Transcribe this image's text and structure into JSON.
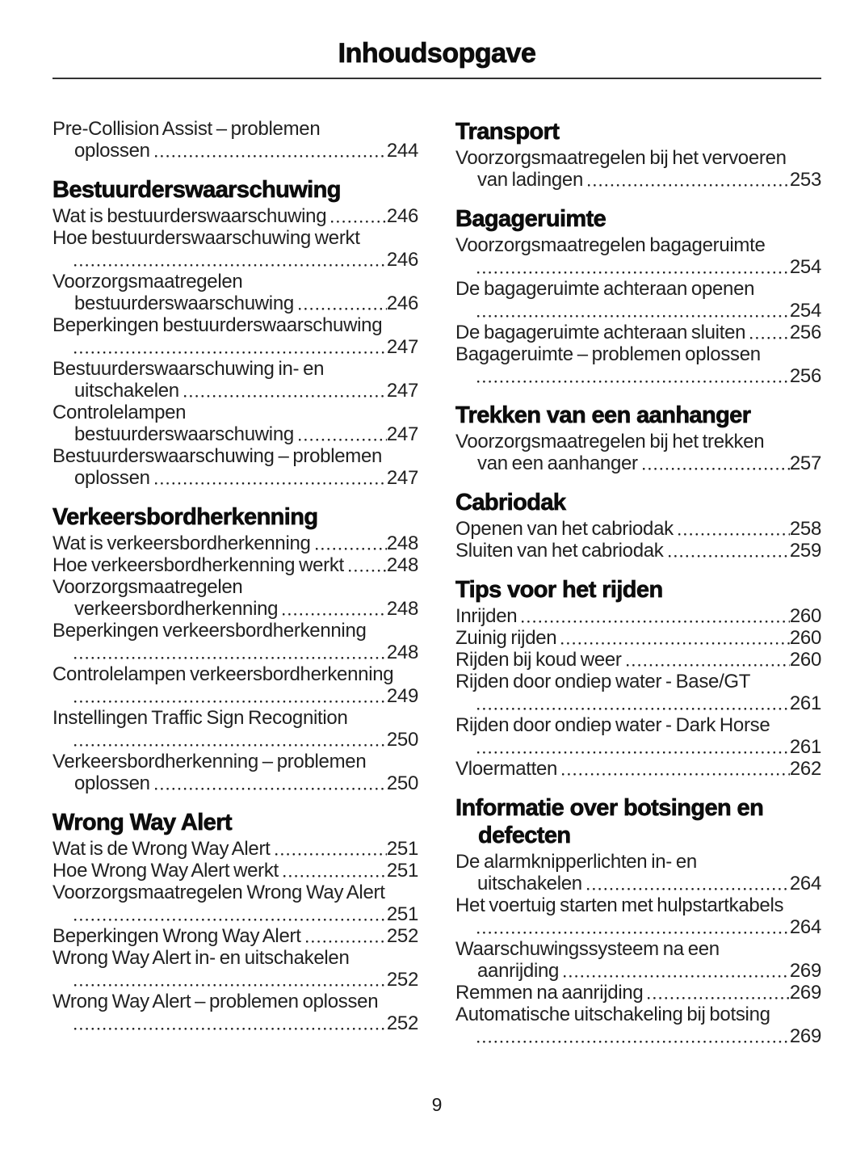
{
  "header": {
    "title": "Inhoudsopgave"
  },
  "footer": {
    "page_number": "9"
  },
  "colors": {
    "background": "#ffffff",
    "text": "#212121",
    "heading": "#0d0d0d",
    "rule": "#333333"
  },
  "columns": [
    {
      "sections": [
        {
          "heading": null,
          "entries": [
            {
              "l1": "Pre-Collision Assist – problemen",
              "l2": "oplossen",
              "page": "244"
            }
          ]
        },
        {
          "heading": "Bestuurderswaarschuwing",
          "entries": [
            {
              "l1": "Wat is bestuurderswaarschuwing",
              "page": "246"
            },
            {
              "l1": "Hoe bestuurderswaarschuwing werkt",
              "l2": "",
              "page": "246"
            },
            {
              "l1": "Voorzorgsmaatregelen",
              "l2": "bestuurderswaarschuwing",
              "page": "246"
            },
            {
              "l1": "Beperkingen bestuurderswaarschuwing",
              "l2": "",
              "page": "247"
            },
            {
              "l1": "Bestuurderswaarschuwing in- en",
              "l2": "uitschakelen",
              "page": "247"
            },
            {
              "l1": "Controlelampen",
              "l2": "bestuurderswaarschuwing",
              "page": "247"
            },
            {
              "l1": "Bestuurderswaarschuwing – problemen",
              "l2": "oplossen",
              "page": "247"
            }
          ]
        },
        {
          "heading": "Verkeersbordherkenning",
          "entries": [
            {
              "l1": "Wat is verkeersbordherkenning",
              "page": "248"
            },
            {
              "l1": "Hoe verkeersbordherkenning werkt",
              "page": "248"
            },
            {
              "l1": "Voorzorgsmaatregelen",
              "l2": "verkeersbordherkenning",
              "page": "248"
            },
            {
              "l1": "Beperkingen verkeersbordherkenning",
              "l2": "",
              "page": "248"
            },
            {
              "l1": "Controlelampen verkeersbordherkenning",
              "l2": "",
              "page": "249"
            },
            {
              "l1": "Instellingen Traffic Sign Recognition",
              "l2": "",
              "page": "250"
            },
            {
              "l1": "Verkeersbordherkenning – problemen",
              "l2": "oplossen",
              "page": "250"
            }
          ]
        },
        {
          "heading": "Wrong Way Alert",
          "entries": [
            {
              "l1": "Wat is de Wrong Way Alert",
              "page": "251"
            },
            {
              "l1": "Hoe Wrong Way Alert werkt",
              "page": "251"
            },
            {
              "l1": "Voorzorgsmaatregelen Wrong Way Alert",
              "l2": "",
              "page": "251"
            },
            {
              "l1": "Beperkingen Wrong Way Alert",
              "page": "252"
            },
            {
              "l1": "Wrong Way Alert in- en uitschakelen",
              "l2": "",
              "page": "252"
            },
            {
              "l1": "Wrong Way Alert – problemen oplossen",
              "l2": "",
              "page": "252"
            }
          ]
        }
      ]
    },
    {
      "sections": [
        {
          "heading": "Transport",
          "entries": [
            {
              "l1": "Voorzorgsmaatregelen bij het vervoeren",
              "l2": "van ladingen",
              "page": "253"
            }
          ]
        },
        {
          "heading": "Bagageruimte",
          "entries": [
            {
              "l1": "Voorzorgsmaatregelen bagageruimte",
              "l2": "",
              "page": "254"
            },
            {
              "l1": "De bagageruimte achteraan openen",
              "l2": "",
              "page": "254"
            },
            {
              "l1": "De bagageruimte achteraan sluiten",
              "page": "256"
            },
            {
              "l1": "Bagageruimte – problemen oplossen",
              "l2": "",
              "page": "256"
            }
          ]
        },
        {
          "heading": "Trekken van een aanhanger",
          "entries": [
            {
              "l1": "Voorzorgsmaatregelen bij het trekken",
              "l2": "van een aanhanger",
              "page": "257"
            }
          ]
        },
        {
          "heading": "Cabriodak",
          "entries": [
            {
              "l1": "Openen van het cabriodak",
              "page": "258"
            },
            {
              "l1": "Sluiten van het cabriodak",
              "page": "259"
            }
          ]
        },
        {
          "heading": "Tips voor het rijden",
          "entries": [
            {
              "l1": "Inrijden",
              "page": "260"
            },
            {
              "l1": "Zuinig rijden",
              "page": "260"
            },
            {
              "l1": "Rijden bij koud weer",
              "page": "260"
            },
            {
              "l1": "Rijden door ondiep water - Base/GT",
              "l2": "",
              "page": "261"
            },
            {
              "l1": "Rijden door ondiep water - Dark Horse",
              "l2": "",
              "page": "261"
            },
            {
              "l1": "Vloermatten",
              "page": "262"
            }
          ]
        },
        {
          "heading": [
            "Informatie over botsingen en",
            "defecten"
          ],
          "entries": [
            {
              "l1": "De alarmknipperlichten in- en",
              "l2": "uitschakelen",
              "page": "264"
            },
            {
              "l1": "Het voertuig starten met hulpstartkabels",
              "l2": "",
              "page": "264"
            },
            {
              "l1": "Waarschuwingssysteem na een",
              "l2": "aanrijding",
              "page": "269"
            },
            {
              "l1": "Remmen na aanrijding",
              "page": "269"
            },
            {
              "l1": "Automatische uitschakeling bij botsing",
              "l2": "",
              "page": "269"
            }
          ]
        }
      ]
    }
  ]
}
